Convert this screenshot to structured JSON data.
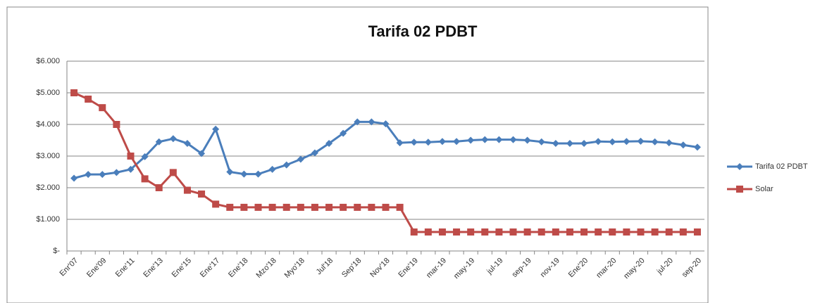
{
  "chart_data": {
    "type": "line",
    "title": "Tarifa 02 PDBT",
    "categories": [
      "Enr'07",
      null,
      "Ene'09",
      null,
      "Ene'11",
      null,
      "Ene'13",
      null,
      "Ene'15",
      null,
      "Ene'17",
      null,
      "Ene'18",
      null,
      "Mzo'18",
      null,
      "Myo'18",
      null,
      "Jul'18",
      null,
      "Sep'18",
      null,
      "Nov'18",
      null,
      "Ene'19",
      null,
      "mar-19",
      null,
      "may-19",
      null,
      "jul-19",
      null,
      "sep-19",
      null,
      "nov-19",
      null,
      "Ene'20",
      null,
      "mar-20",
      null,
      "may-20",
      null,
      "jul-20",
      null,
      "sep-20"
    ],
    "series": [
      {
        "name": "Tarifa 02 PDBT",
        "color": "#4a7ebb",
        "marker": "diamond",
        "values": [
          2300,
          2420,
          2420,
          2480,
          2580,
          2980,
          3450,
          3550,
          3400,
          3080,
          3850,
          2500,
          2430,
          2430,
          2580,
          2720,
          2900,
          3100,
          3400,
          3720,
          4080,
          4080,
          4020,
          3420,
          3440,
          3440,
          3460,
          3460,
          3500,
          3520,
          3520,
          3520,
          3500,
          3450,
          3400,
          3400,
          3400,
          3460,
          3450,
          3460,
          3470,
          3450,
          3420,
          3350,
          3280
        ]
      },
      {
        "name": "Solar",
        "color": "#be4b48",
        "marker": "square",
        "values": [
          5000,
          4800,
          4530,
          4000,
          3000,
          2280,
          2000,
          2480,
          1920,
          1800,
          1480,
          1380,
          1380,
          1380,
          1380,
          1380,
          1380,
          1380,
          1380,
          1380,
          1380,
          1380,
          1380,
          1380,
          600,
          600,
          600,
          600,
          600,
          600,
          600,
          600,
          600,
          600,
          600,
          600,
          600,
          600,
          600,
          600,
          600,
          600,
          600,
          600,
          600
        ]
      }
    ],
    "ylim": [
      0,
      6000
    ],
    "yticks": [
      {
        "value": 0,
        "label": "$-"
      },
      {
        "value": 1000,
        "label": "$1.000"
      },
      {
        "value": 2000,
        "label": "$2.000"
      },
      {
        "value": 3000,
        "label": "$3.000"
      },
      {
        "value": 4000,
        "label": "$4.000"
      },
      {
        "value": 5000,
        "label": "$5.000"
      },
      {
        "value": 6000,
        "label": "$6.000"
      }
    ],
    "grid": true,
    "legend": "right"
  }
}
